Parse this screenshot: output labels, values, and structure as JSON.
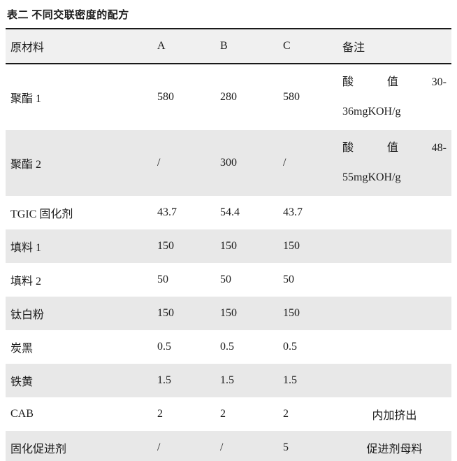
{
  "title": "表二 不同交联密度的配方",
  "table": {
    "headers": [
      "原材料",
      "A",
      "B",
      "C",
      "备注"
    ],
    "rows": [
      {
        "material": "聚酯 1",
        "A": "580",
        "B": "280",
        "C": "580",
        "note": {
          "justify_parts": [
            "酸",
            "值",
            "30-"
          ],
          "line2": "36mgKOH/g"
        }
      },
      {
        "material": "聚酯 2",
        "A": "/",
        "B": "300",
        "C": "/",
        "note": {
          "justify_parts": [
            "酸",
            "值",
            "48-"
          ],
          "line2": "55mgKOH/g"
        }
      },
      {
        "material": "TGIC 固化剂",
        "A": "43.7",
        "B": "54.4",
        "C": "43.7",
        "note": ""
      },
      {
        "material": "填料 1",
        "A": "150",
        "B": "150",
        "C": "150",
        "note": ""
      },
      {
        "material": "填料 2",
        "A": "50",
        "B": "50",
        "C": "50",
        "note": ""
      },
      {
        "material": "钛白粉",
        "A": "150",
        "B": "150",
        "C": "150",
        "note": ""
      },
      {
        "material": "炭黑",
        "A": "0.5",
        "B": "0.5",
        "C": "0.5",
        "note": ""
      },
      {
        "material": "铁黄",
        "A": "1.5",
        "B": "1.5",
        "C": "1.5",
        "note": ""
      },
      {
        "material": "CAB",
        "A": "2",
        "B": "2",
        "C": "2",
        "note": "内加挤出"
      },
      {
        "material": "固化促进剂",
        "A": "/",
        "B": "/",
        "C": "5",
        "note": "促进剂母料"
      }
    ]
  },
  "colors": {
    "page_bg": "#ffffff",
    "header_bg": "#f0f0f0",
    "stripe_bg": "#e8e8e8",
    "border": "#1a1a1a",
    "text": "#1c1c1c"
  }
}
